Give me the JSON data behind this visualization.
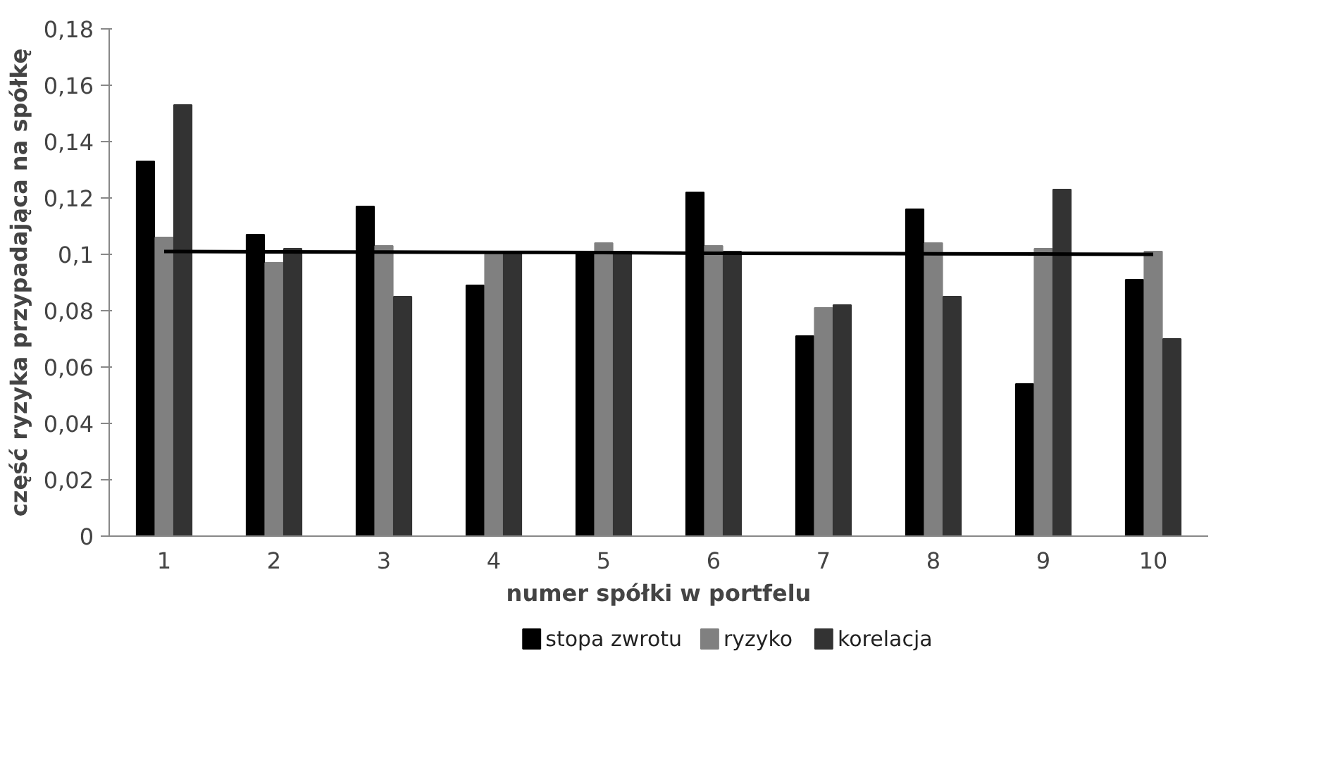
{
  "chart_data": {
    "type": "bar",
    "xlabel": "numer spółki w portfelu",
    "ylabel": "część ryzyka przypadająca na spółkę",
    "categories": [
      "1",
      "2",
      "3",
      "4",
      "5",
      "6",
      "7",
      "8",
      "9",
      "10"
    ],
    "series": [
      {
        "name": "stopa zwrotu",
        "color": "#000000",
        "values": [
          0.133,
          0.107,
          0.117,
          0.089,
          0.101,
          0.122,
          0.071,
          0.116,
          0.054,
          0.091
        ]
      },
      {
        "name": "ryzyko",
        "color": "#808080",
        "values": [
          0.106,
          0.097,
          0.103,
          0.1,
          0.104,
          0.103,
          0.081,
          0.104,
          0.102,
          0.101
        ]
      },
      {
        "name": "korelacja",
        "color": "#333333",
        "values": [
          0.153,
          0.102,
          0.085,
          0.101,
          0.101,
          0.101,
          0.082,
          0.085,
          0.123,
          0.07
        ]
      },
      {
        "type": "line",
        "color": "#000000",
        "values": [
          0.101,
          0.1009,
          0.1008,
          0.1007,
          0.1006,
          0.1004,
          0.1003,
          0.1002,
          0.1001,
          0.1
        ]
      }
    ],
    "ylim": [
      0,
      0.18
    ],
    "yticks": [
      0,
      {
        "value": 0.02,
        "label": "0,02"
      },
      {
        "value": 0.04,
        "label": "0,04"
      },
      {
        "value": 0.06,
        "label": "0,06"
      },
      {
        "value": 0.08,
        "label": "0,08"
      },
      {
        "value": 0.1,
        "label": "0,1"
      },
      {
        "value": 0.12,
        "label": "0,12"
      },
      {
        "value": 0.14,
        "label": "0,14"
      },
      {
        "value": 0.16,
        "label": "0,16"
      },
      {
        "value": 0.18,
        "label": "0,18"
      }
    ],
    "grid": false,
    "legend": "bottom"
  }
}
